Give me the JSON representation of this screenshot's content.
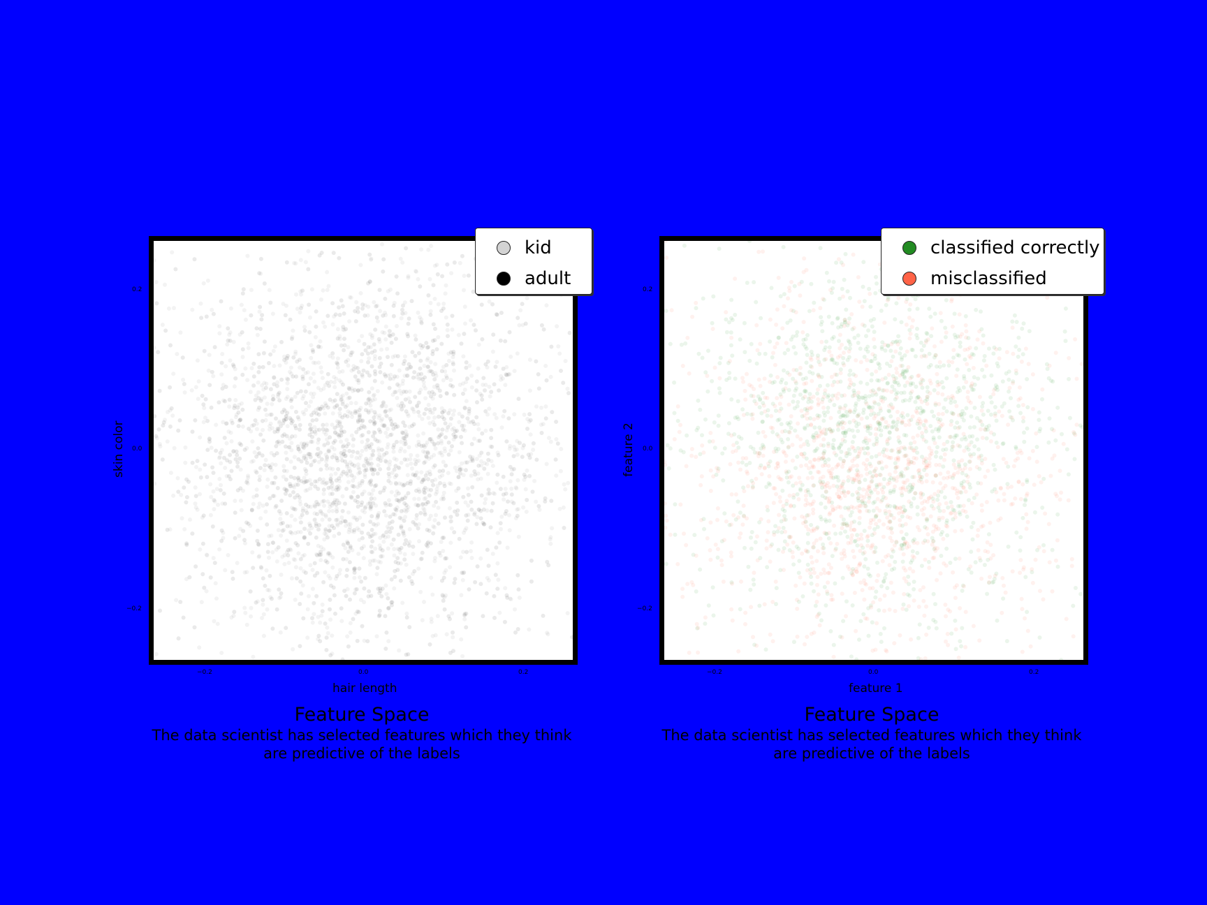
{
  "background": "#0000ff",
  "chart_data": [
    {
      "type": "scatter",
      "title": "Feature Space",
      "subtitle": "The data scientist has selected features which they think are predictive of the labels",
      "subtitle_lines": [
        "The data scientist has selected features which they think",
        "are predictive of the labels"
      ],
      "xlabel": "hair length",
      "ylabel": "skin color",
      "xlim": [
        -0.27,
        0.27
      ],
      "ylim": [
        -0.27,
        0.27
      ],
      "xticks": [
        {
          "value": -0.2,
          "label": "−0.2"
        },
        {
          "value": 0.0,
          "label": "0.0"
        },
        {
          "value": 0.2,
          "label": "0.2"
        }
      ],
      "yticks": [
        {
          "value": 0.2,
          "label": "0.2"
        },
        {
          "value": 0.0,
          "label": "0.0"
        },
        {
          "value": -0.2,
          "label": "−0.2"
        }
      ],
      "grid": false,
      "legend_position": "top-right",
      "series": [
        {
          "name": "kid",
          "color": "#d3d3d3"
        },
        {
          "name": "adult",
          "color": "#000000"
        }
      ],
      "distribution": {
        "shape": "gaussian cloud",
        "center": [
          0.0,
          0.0
        ],
        "spread": 0.12,
        "marker_alpha": "low"
      }
    },
    {
      "type": "scatter",
      "title": "Feature Space",
      "subtitle": "The data scientist has selected features which they think are predictive of the labels",
      "subtitle_lines": [
        "The data scientist has selected features which they think",
        "are predictive of the labels"
      ],
      "xlabel": "feature 1",
      "ylabel": "feature 2",
      "xlim": [
        -0.27,
        0.27
      ],
      "ylim": [
        -0.27,
        0.27
      ],
      "xticks": [
        {
          "value": -0.2,
          "label": "−0.2"
        },
        {
          "value": 0.0,
          "label": "0.0"
        },
        {
          "value": 0.2,
          "label": "0.2"
        }
      ],
      "yticks": [
        {
          "value": 0.2,
          "label": "0.2"
        },
        {
          "value": 0.0,
          "label": "0.0"
        },
        {
          "value": -0.2,
          "label": "−0.2"
        }
      ],
      "grid": false,
      "legend_position": "top-right",
      "series": [
        {
          "name": "classified correctly",
          "color": "#228b22"
        },
        {
          "name": "misclassified",
          "color": "#ff6347"
        }
      ],
      "distribution": {
        "shape": "gaussian cloud",
        "center": [
          0.0,
          0.0
        ],
        "spread": 0.12,
        "marker_alpha": "low"
      }
    }
  ]
}
